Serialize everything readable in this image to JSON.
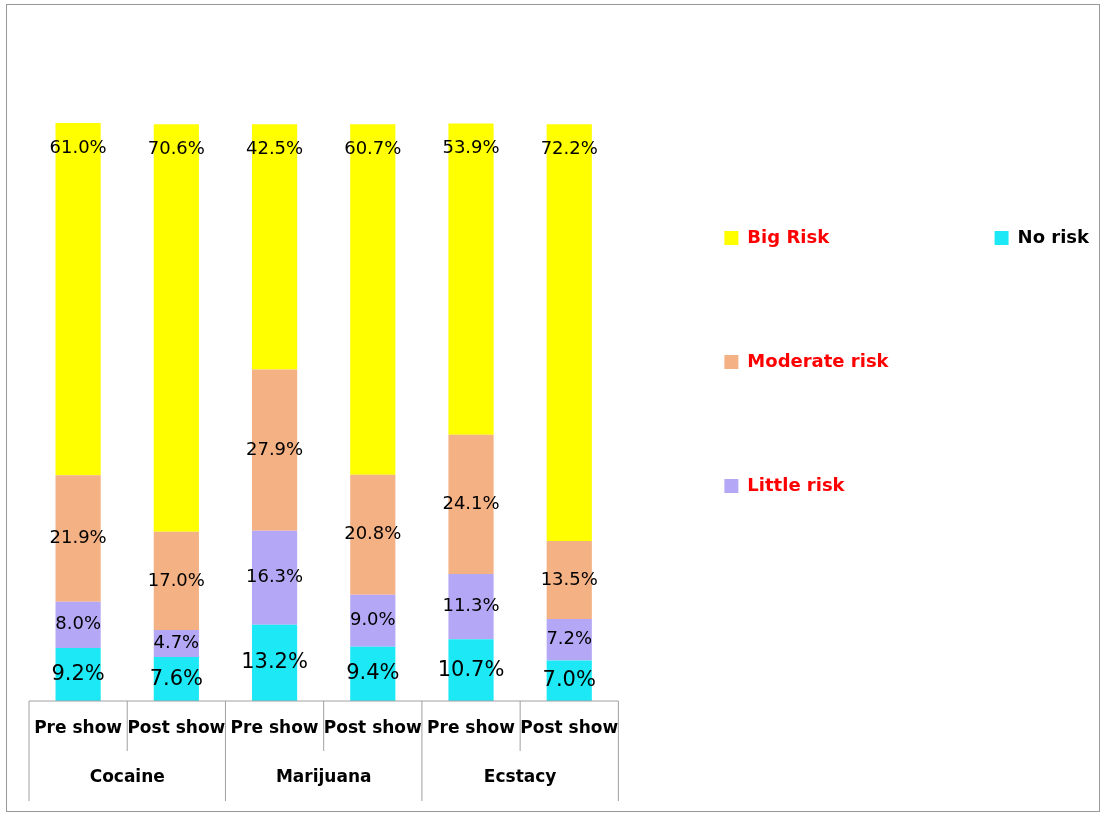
{
  "chart_data": {
    "type": "bar",
    "stacked": true,
    "categories": [
      "Pre show",
      "Post show",
      "Pre show",
      "Post show",
      "Pre show",
      "Post show"
    ],
    "annotations": [
      "Cocaine",
      "Marijuana",
      "Ecstacy"
    ],
    "series": [
      {
        "name": "No risk",
        "color": "#1de9f6",
        "values": [
          9.2,
          7.6,
          13.2,
          9.4,
          10.7,
          7.0
        ],
        "value_labels": [
          "9.2%",
          "7.6%",
          "13.2%",
          "9.4%",
          "10.7%",
          "7.0%"
        ]
      },
      {
        "name": "Little risk",
        "color": "#b4a7f5",
        "values": [
          8.0,
          4.7,
          16.3,
          9.0,
          11.3,
          7.2
        ],
        "value_labels": [
          "8.0%",
          "4.7%",
          "16.3%",
          "9.0%",
          "11.3%",
          "7.2%"
        ]
      },
      {
        "name": "Moderate risk",
        "color": "#f4b183",
        "values": [
          21.9,
          17.0,
          27.9,
          20.8,
          24.1,
          13.5
        ],
        "value_labels": [
          "21.9%",
          "17.0%",
          "27.9%",
          "20.8%",
          "24.1%",
          "13.5%"
        ]
      },
      {
        "name": "Big Risk",
        "color": "#ffff00",
        "values": [
          61.0,
          70.6,
          42.5,
          60.7,
          53.9,
          72.2
        ],
        "value_labels": [
          "61.0%",
          "70.6%",
          "42.5%",
          "60.7%",
          "53.9%",
          "72.2%"
        ]
      }
    ],
    "legend": "right",
    "tick_labels": "x"
  }
}
